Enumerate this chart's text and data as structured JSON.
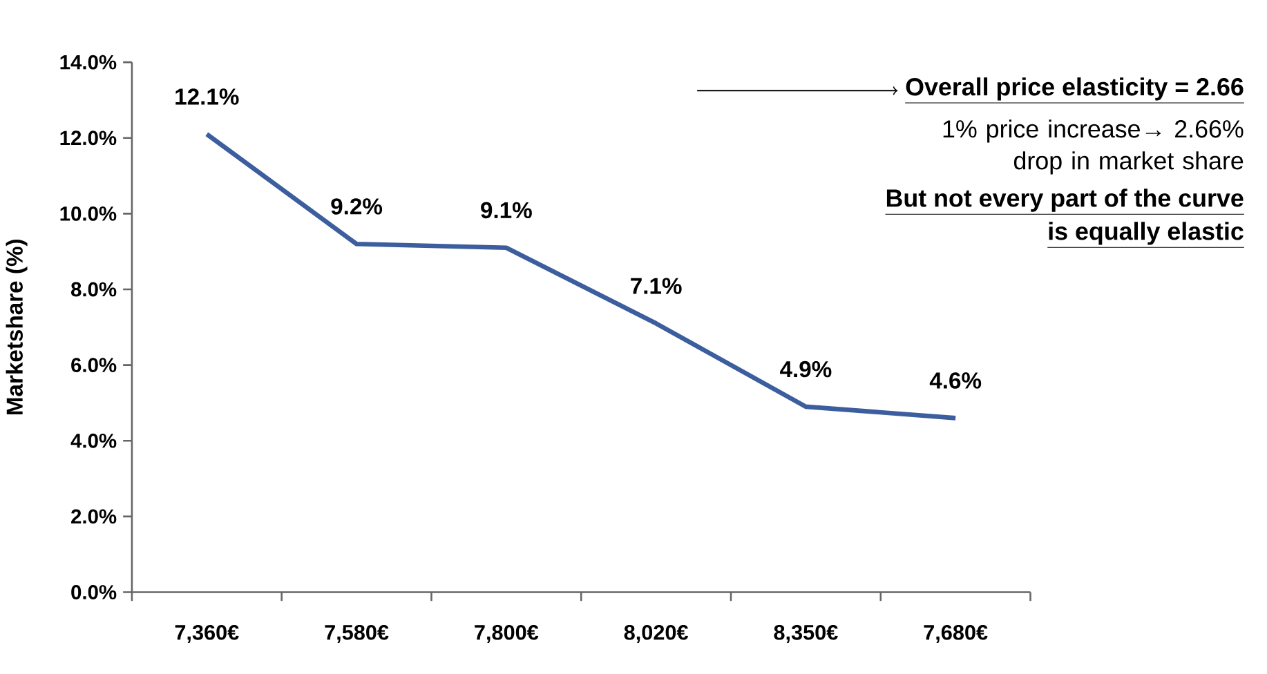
{
  "chart_data": {
    "type": "line",
    "ylabel": "Marketshare (%)",
    "categories": [
      "7,360€",
      "7,580€",
      "7,800€",
      "8,020€",
      "8,350€",
      "7,680€"
    ],
    "series": [
      {
        "color": "#3d5e9e",
        "values": [
          12.1,
          9.2,
          9.1,
          7.1,
          4.9,
          4.6
        ],
        "value_labels": [
          "12.1%",
          "9.2%",
          "9.1%",
          "7.1%",
          "4.9%",
          "4.6%"
        ]
      }
    ],
    "ylim": [
      0,
      14
    ],
    "yticks": [
      {
        "value": 0,
        "label": "0.0%"
      },
      {
        "value": 2,
        "label": "2.0%"
      },
      {
        "value": 4,
        "label": "4.0%"
      },
      {
        "value": 6,
        "label": "6.0%"
      },
      {
        "value": 8,
        "label": "8.0%"
      },
      {
        "value": 10,
        "label": "10.0%"
      },
      {
        "value": 12,
        "label": "12.0%"
      },
      {
        "value": 14,
        "label": "14.0%"
      }
    ],
    "marker": "none",
    "line_style": "solid",
    "grid": false,
    "annotations": [
      "Overall price elasticity = 2.66",
      "1% price increase→ 2.66% drop in market share",
      "But not every part of the curve",
      "is equally elastic"
    ]
  }
}
